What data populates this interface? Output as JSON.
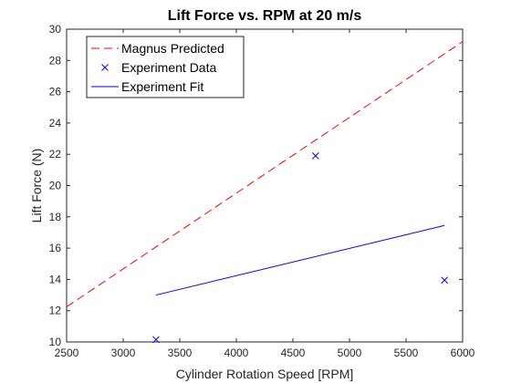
{
  "chart_data": {
    "type": "line",
    "title": "Lift Force vs. RPM at 20 m/s",
    "xlabel": "Cylinder Rotation Speed [RPM]",
    "ylabel": "Lift Force (N)",
    "xlim": [
      2500,
      6000
    ],
    "ylim": [
      10,
      30
    ],
    "xticks": [
      2500,
      3000,
      3500,
      4000,
      4500,
      5000,
      5500,
      6000
    ],
    "yticks": [
      10,
      12,
      14,
      16,
      18,
      20,
      22,
      24,
      26,
      28,
      30
    ],
    "grid": false,
    "legend_position": "top-left",
    "series": [
      {
        "name": "Magnus Predicted",
        "style": "dashed-line",
        "color": "#ff0000",
        "x": [
          2500,
          6000
        ],
        "y": [
          12.25,
          29.2
        ]
      },
      {
        "name": "Experiment Data",
        "style": "x-marker",
        "color": "#0000ff",
        "x": [
          3290,
          4700,
          5840
        ],
        "y": [
          10.15,
          21.9,
          13.95
        ]
      },
      {
        "name": "Experiment Fit",
        "style": "solid-line",
        "color": "#0000ff",
        "x": [
          3290,
          5840
        ],
        "y": [
          13.0,
          17.45
        ]
      }
    ]
  }
}
